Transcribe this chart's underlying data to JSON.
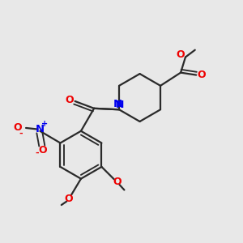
{
  "bg_color": "#e8e8e8",
  "bond_color": "#2a2a2a",
  "N_color": "#0000ee",
  "O_color": "#ee0000",
  "line_width": 1.6,
  "fig_size": [
    3.0,
    3.0
  ],
  "dpi": 100,
  "xlim": [
    0,
    10
  ],
  "ylim": [
    0,
    10
  ]
}
